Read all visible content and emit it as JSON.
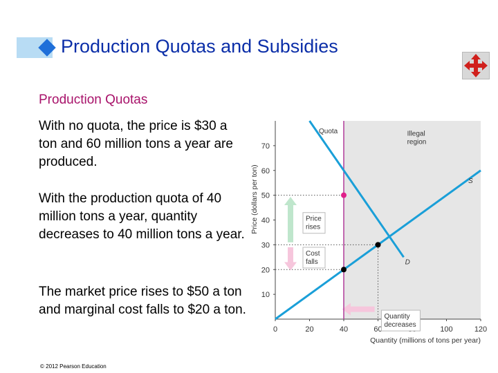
{
  "slide": {
    "title": "Production Quotas and Subsidies",
    "subtitle": "Production Quotas",
    "paragraphs": [
      "With no quota, the price is $30 a ton and 60 million tons a year are produced.",
      "With the production quota of 40 million tons a year, quantity decreases to 40 million tons a year.",
      "The market price rises to $50 a ton and marginal cost falls to $20 a ton."
    ],
    "copyright": "© 2012 Pearson Education"
  },
  "nav_icon": "four-way-arrow-icon",
  "colors": {
    "title": "#0b2ea8",
    "subtitle": "#a8126a",
    "curve": "#1a9fd8",
    "quota": "#b03a9a",
    "point_quota": "#e0208a",
    "illegal_region": "#e6e6e6",
    "price_rise_arrow": "#bfe6cc",
    "cost_fall_arrow": "#f6c6dc"
  },
  "chart_data": {
    "type": "line",
    "xlabel": "Quantity (millions of tons per year)",
    "ylabel": "Price (dollars per ton)",
    "xlim": [
      0,
      120
    ],
    "ylim": [
      0,
      80
    ],
    "x_ticks": [
      0,
      20,
      40,
      60,
      80,
      100,
      120
    ],
    "y_ticks": [
      10,
      20,
      30,
      40,
      50,
      60,
      70
    ],
    "series": [
      {
        "name": "S",
        "points": [
          [
            0,
            0
          ],
          [
            120,
            60
          ]
        ]
      },
      {
        "name": "D",
        "points": [
          [
            20,
            80
          ],
          [
            75,
            25
          ]
        ]
      }
    ],
    "quota": {
      "label": "Quota",
      "x": 40
    },
    "illegal_region": {
      "label_lines": [
        "Illegal",
        "region"
      ],
      "x_from": 40,
      "x_to": 120
    },
    "points": [
      {
        "x": 40,
        "y": 50,
        "style": "quota-price"
      },
      {
        "x": 60,
        "y": 30,
        "style": "equilibrium"
      },
      {
        "x": 40,
        "y": 20,
        "style": "marginal-cost"
      }
    ],
    "annotations": {
      "price_rises": [
        "Price",
        "rises"
      ],
      "cost_falls": [
        "Cost",
        "falls"
      ],
      "quantity_decreases": [
        "Quantity",
        "decreases"
      ]
    },
    "highlighted_y_tick": 50,
    "highlighted_x_tick": 40
  }
}
